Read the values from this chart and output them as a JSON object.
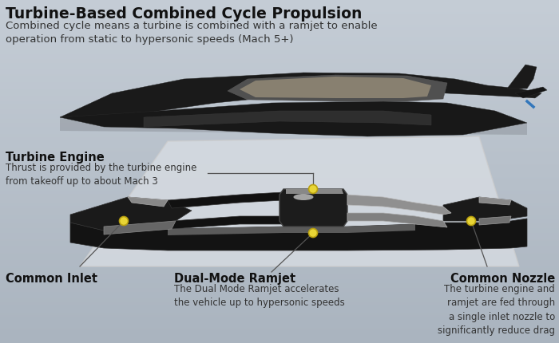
{
  "bg_color_top": "#c5cdd6",
  "bg_color_bottom": "#aab4bf",
  "title": "Turbine-Based Combined Cycle Propulsion",
  "subtitle": "Combined cycle means a turbine is combined with a ramjet to enable\noperation from static to hypersonic speeds (Mach 5+)",
  "title_fontsize": 13.5,
  "subtitle_fontsize": 9.5,
  "label1_title": "Turbine Engine",
  "label1_body": "Thrust is provided by the turbine engine\nfrom takeoff up to about Mach 3",
  "label2_title": "Common Inlet",
  "label3_title": "Dual-Mode Ramjet",
  "label3_body": "The Dual Mode Ramjet accelerates\nthe vehicle up to hypersonic speeds",
  "label4_title": "Common Nozzle",
  "label4_body": "The turbine engine and\nramjet are fed through\na single inlet nozzle to\nsignificantly reduce drag",
  "label_title_fontsize": 10.5,
  "label_body_fontsize": 8.5,
  "dot_color": "#e8d535",
  "dot_edge": "#b8a010",
  "line_color": "#555555",
  "white_region_color": "#dde2e8",
  "aircraft_dark": "#111111",
  "chrome_color": "#909090"
}
